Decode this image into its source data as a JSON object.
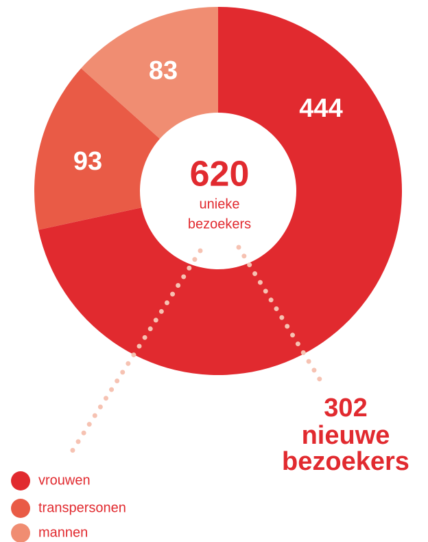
{
  "chart_data": {
    "type": "donut",
    "categories": [
      "vrouwen",
      "transpersonen",
      "mannen"
    ],
    "values": [
      444,
      93,
      83
    ],
    "colors": [
      "#e12a2f",
      "#e95b46",
      "#f08d72"
    ],
    "total": 620,
    "center_label_lines": [
      "unieke",
      "bezoekers"
    ],
    "annotation": {
      "value": 302,
      "lines": [
        "nieuwe",
        "bezoekers"
      ]
    },
    "legend": "bottom-left"
  }
}
